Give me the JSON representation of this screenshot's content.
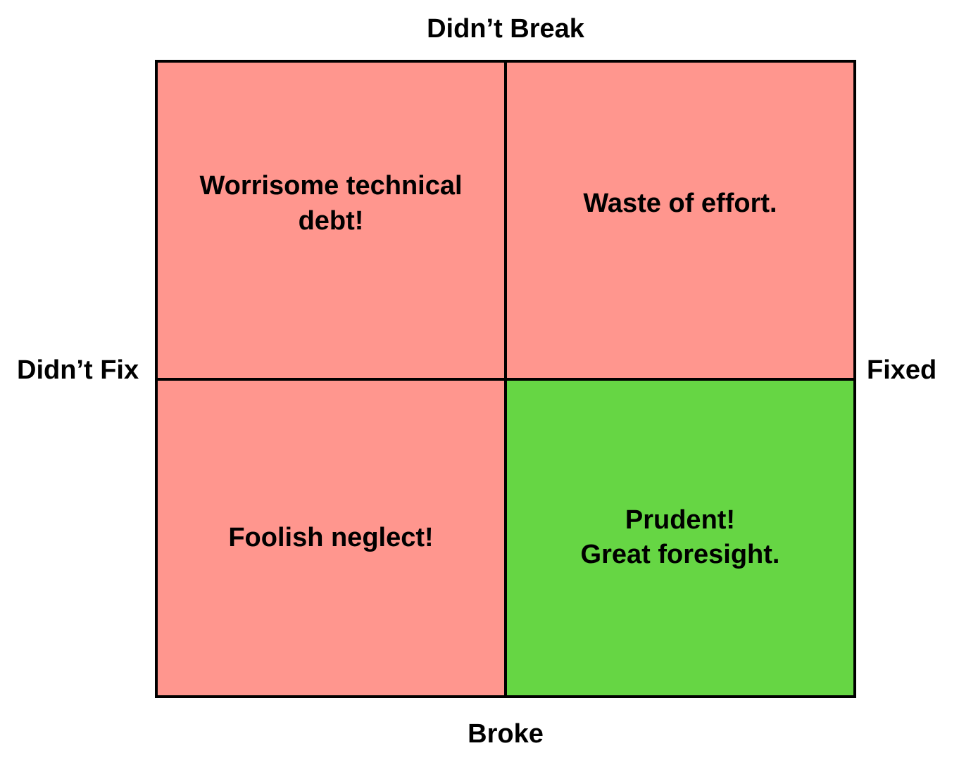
{
  "axes": {
    "top": "Didn’t Break",
    "bottom": "Broke",
    "left": "Didn’t Fix",
    "right": "Fixed"
  },
  "quadrants": {
    "top_left": {
      "text": "Worrisome technical\ndebt!",
      "color": "#ff968e"
    },
    "top_right": {
      "text": "Waste of effort.",
      "color": "#ff968e"
    },
    "bottom_left": {
      "text": "Foolish neglect!",
      "color": "#ff968e"
    },
    "bottom_right": {
      "text": "Prudent!\nGreat foresight.",
      "color": "#66d644"
    }
  }
}
